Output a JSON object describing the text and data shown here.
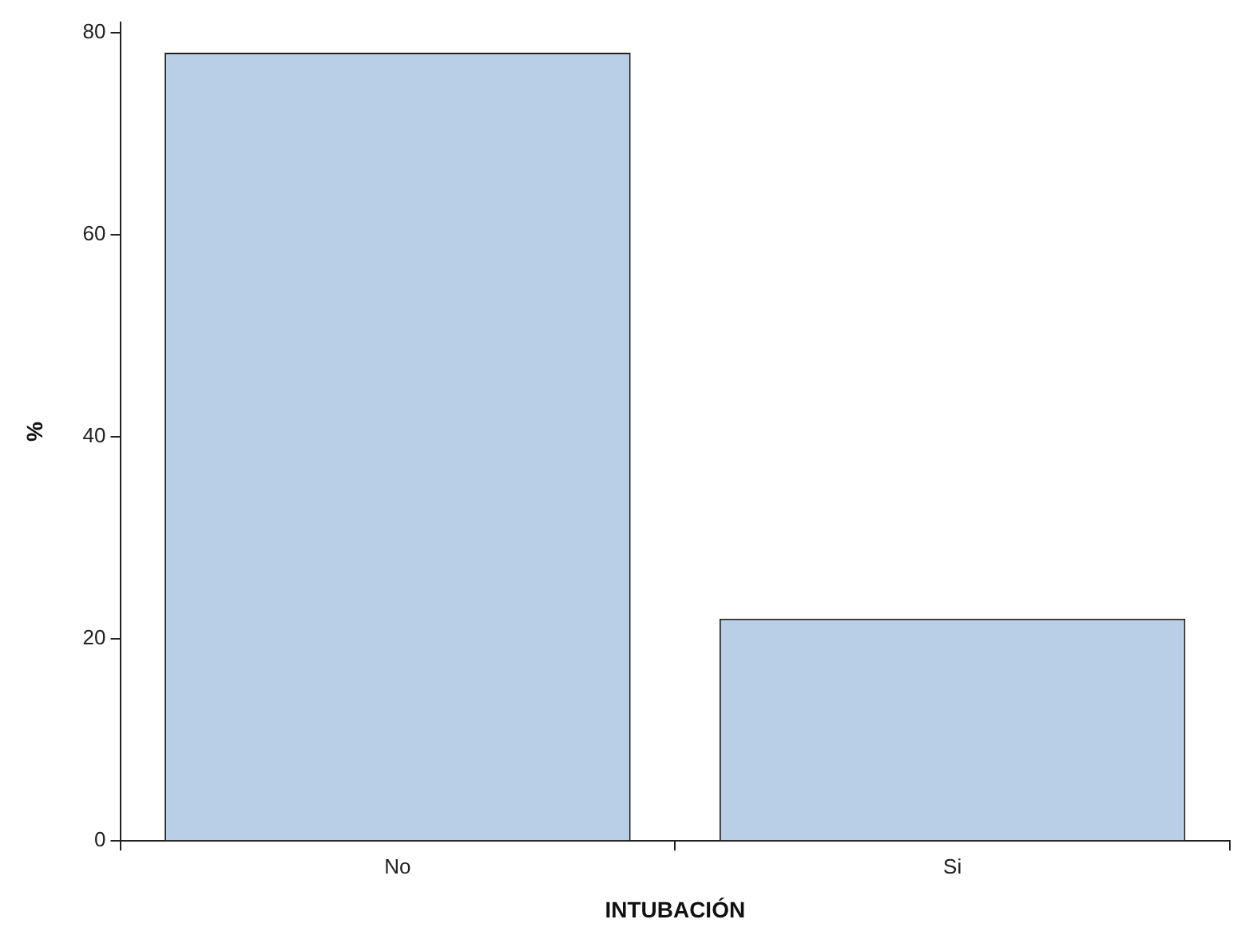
{
  "chart_data": {
    "type": "bar",
    "xlabel": "INTUBACIÓN",
    "ylabel": "%",
    "categories": [
      "No",
      "Si"
    ],
    "series": [
      {
        "color": "#b9cfe7",
        "values": [
          78,
          22
        ]
      }
    ],
    "ylim": [
      0,
      81
    ],
    "yticks": [
      0,
      20,
      40,
      60,
      80
    ],
    "grid": false,
    "legend": false
  }
}
